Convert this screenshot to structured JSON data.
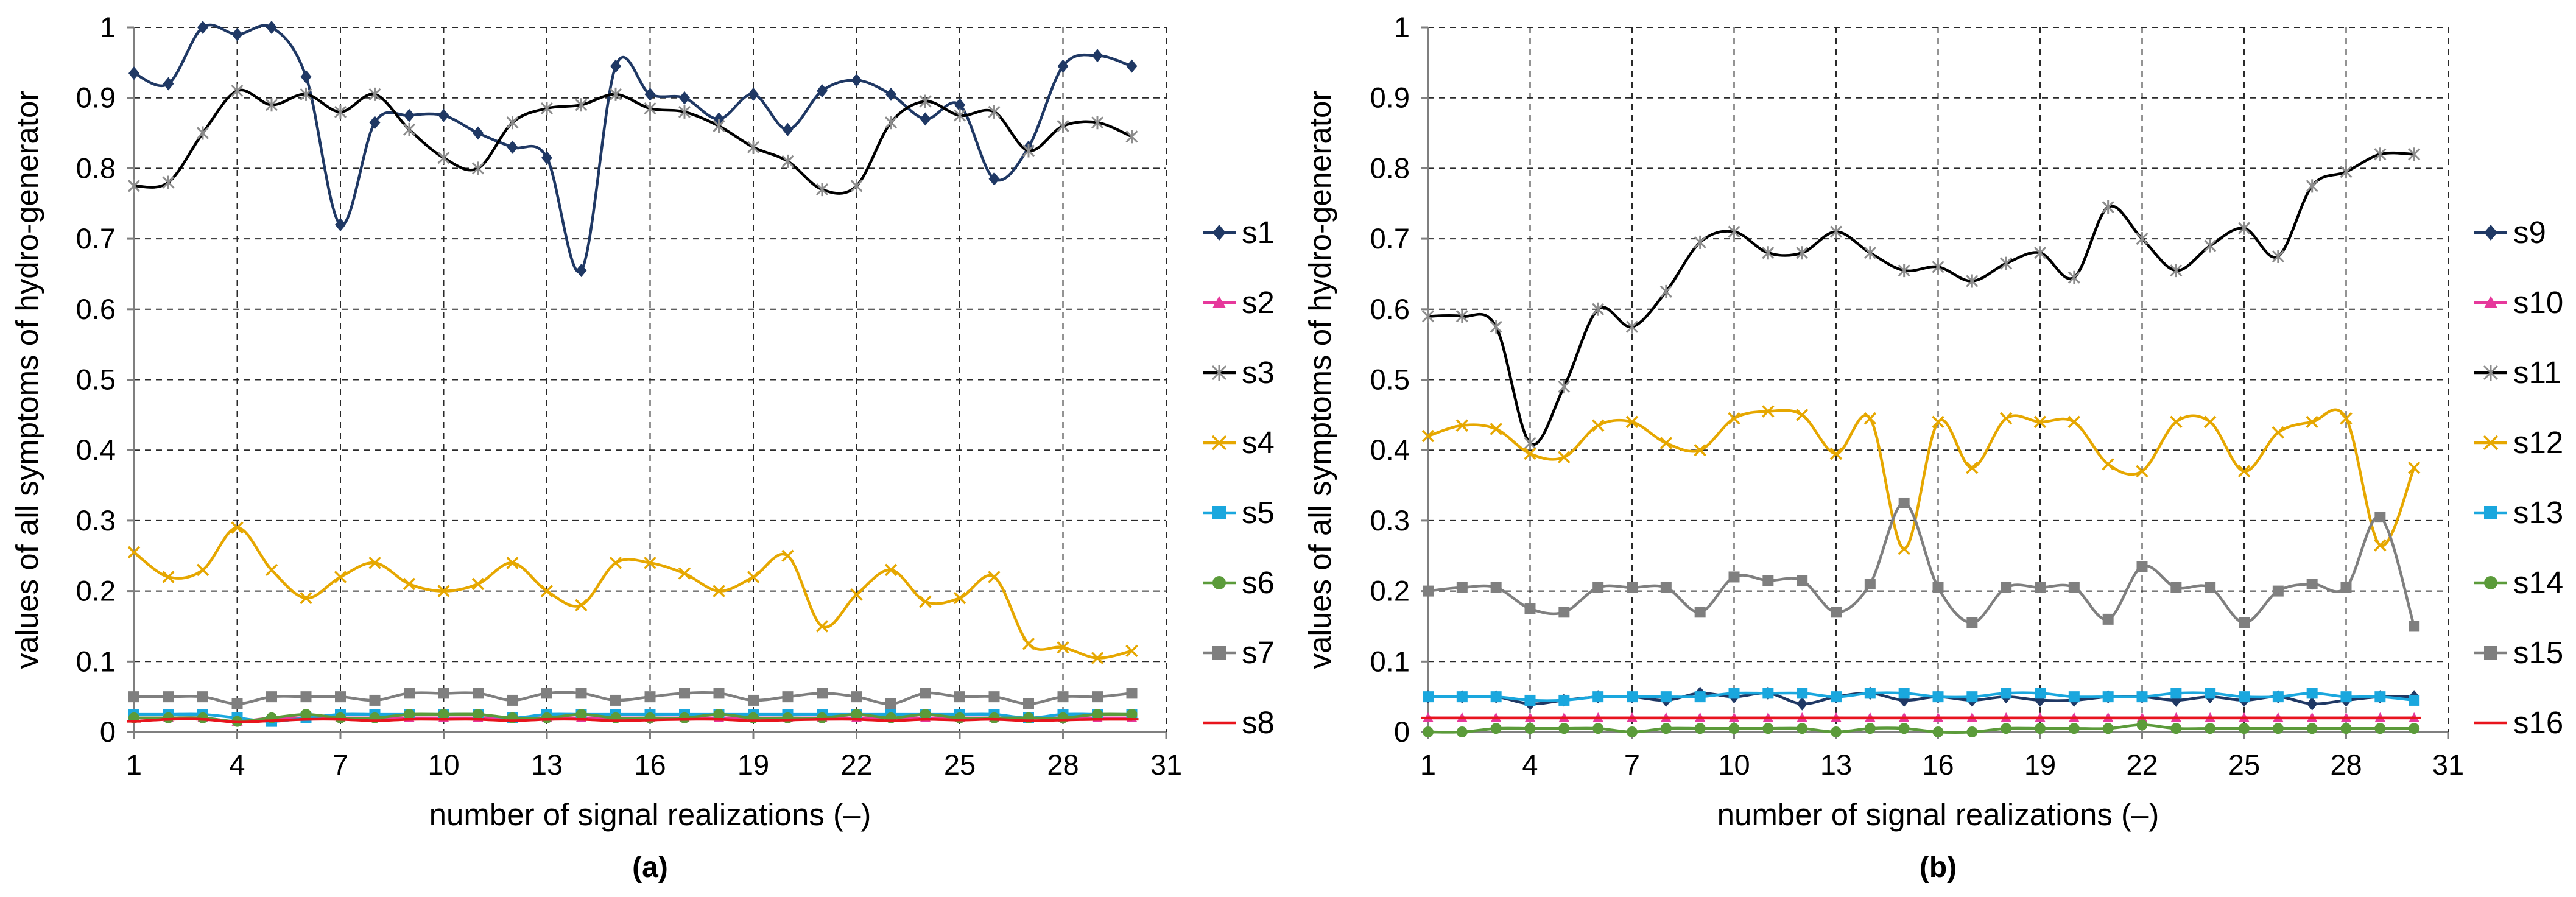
{
  "chart_data": [
    {
      "type": "line",
      "panel_label": "(a)",
      "xlabel": "number of signal realizations (–)",
      "ylabel": "values of all symptoms of hydro-generator",
      "xlim": [
        1,
        31
      ],
      "ylim": [
        0,
        1
      ],
      "x_ticks": [
        1,
        4,
        7,
        10,
        13,
        16,
        19,
        22,
        25,
        28,
        31
      ],
      "y_ticks": [
        0,
        0.1,
        0.2,
        0.3,
        0.4,
        0.5,
        0.6,
        0.7,
        0.8,
        0.9,
        1
      ],
      "y_tick_labels": [
        "0",
        "0.1",
        "0.2",
        "0.3",
        "0.4",
        "0.5",
        "0.6",
        "0.7",
        "0.8",
        "0.9",
        "1"
      ],
      "grid": true,
      "legend_position": "right",
      "x": [
        1,
        2,
        3,
        4,
        5,
        6,
        7,
        8,
        9,
        10,
        11,
        12,
        13,
        14,
        15,
        16,
        17,
        18,
        19,
        20,
        21,
        22,
        23,
        24,
        25,
        26,
        27,
        28,
        29,
        30
      ],
      "series": [
        {
          "name": "s1",
          "color": "#1f3864",
          "marker": "diamond",
          "values": [
            0.935,
            0.92,
            1.0,
            0.99,
            1.0,
            0.93,
            0.72,
            0.865,
            0.875,
            0.875,
            0.85,
            0.83,
            0.815,
            0.655,
            0.945,
            0.905,
            0.9,
            0.87,
            0.905,
            0.855,
            0.91,
            0.925,
            0.905,
            0.87,
            0.89,
            0.785,
            0.83,
            0.945,
            0.96,
            0.945
          ]
        },
        {
          "name": "s2",
          "color": "#e6389b",
          "marker": "triangle",
          "values": [
            0.02,
            0.02,
            0.02,
            0.015,
            0.02,
            0.02,
            0.02,
            0.02,
            0.02,
            0.02,
            0.02,
            0.02,
            0.02,
            0.02,
            0.02,
            0.02,
            0.02,
            0.02,
            0.02,
            0.02,
            0.02,
            0.02,
            0.02,
            0.02,
            0.02,
            0.02,
            0.02,
            0.02,
            0.02,
            0.02
          ]
        },
        {
          "name": "s3",
          "color": "#000000",
          "marker": "star",
          "values": [
            0.775,
            0.78,
            0.85,
            0.91,
            0.89,
            0.905,
            0.88,
            0.905,
            0.855,
            0.815,
            0.8,
            0.865,
            0.885,
            0.89,
            0.905,
            0.885,
            0.88,
            0.86,
            0.83,
            0.81,
            0.77,
            0.775,
            0.865,
            0.895,
            0.875,
            0.88,
            0.825,
            0.86,
            0.865,
            0.845
          ]
        },
        {
          "name": "s4",
          "color": "#e6a700",
          "marker": "x",
          "values": [
            0.255,
            0.22,
            0.23,
            0.29,
            0.23,
            0.19,
            0.22,
            0.24,
            0.21,
            0.2,
            0.21,
            0.24,
            0.2,
            0.18,
            0.24,
            0.24,
            0.225,
            0.2,
            0.22,
            0.25,
            0.15,
            0.195,
            0.23,
            0.185,
            0.19,
            0.22,
            0.125,
            0.12,
            0.105,
            0.115
          ]
        },
        {
          "name": "s5",
          "color": "#1aa7de",
          "marker": "square",
          "values": [
            0.025,
            0.025,
            0.025,
            0.02,
            0.015,
            0.02,
            0.025,
            0.025,
            0.025,
            0.025,
            0.025,
            0.02,
            0.025,
            0.025,
            0.025,
            0.025,
            0.025,
            0.025,
            0.025,
            0.025,
            0.025,
            0.025,
            0.025,
            0.025,
            0.025,
            0.025,
            0.02,
            0.025,
            0.025,
            0.025
          ]
        },
        {
          "name": "s6",
          "color": "#5b9b3a",
          "marker": "circle",
          "values": [
            0.02,
            0.02,
            0.02,
            0.015,
            0.02,
            0.025,
            0.02,
            0.02,
            0.025,
            0.025,
            0.025,
            0.02,
            0.02,
            0.025,
            0.02,
            0.02,
            0.02,
            0.025,
            0.02,
            0.02,
            0.02,
            0.025,
            0.02,
            0.025,
            0.02,
            0.02,
            0.02,
            0.02,
            0.025,
            0.025
          ]
        },
        {
          "name": "s7",
          "color": "#7f7f7f",
          "marker": "square",
          "values": [
            0.05,
            0.05,
            0.05,
            0.04,
            0.05,
            0.05,
            0.05,
            0.045,
            0.055,
            0.055,
            0.055,
            0.045,
            0.055,
            0.055,
            0.045,
            0.05,
            0.055,
            0.055,
            0.045,
            0.05,
            0.055,
            0.05,
            0.04,
            0.055,
            0.05,
            0.05,
            0.04,
            0.05,
            0.05,
            0.055
          ]
        },
        {
          "name": "s8",
          "color": "#e8141c",
          "marker": "dash",
          "values": [
            0.015,
            0.018,
            0.018,
            0.014,
            0.016,
            0.018,
            0.018,
            0.016,
            0.018,
            0.018,
            0.018,
            0.016,
            0.018,
            0.018,
            0.016,
            0.017,
            0.018,
            0.018,
            0.016,
            0.017,
            0.018,
            0.018,
            0.016,
            0.018,
            0.017,
            0.018,
            0.016,
            0.017,
            0.018,
            0.018
          ]
        }
      ]
    },
    {
      "type": "line",
      "panel_label": "(b)",
      "xlabel": "number of signal realizations (–)",
      "ylabel": "values of all symptoms of hydro-generator",
      "xlim": [
        1,
        31
      ],
      "ylim": [
        0,
        1
      ],
      "x_ticks": [
        1,
        4,
        7,
        10,
        13,
        16,
        19,
        22,
        25,
        28,
        31
      ],
      "y_ticks": [
        0,
        0.1,
        0.2,
        0.3,
        0.4,
        0.5,
        0.6,
        0.7,
        0.8,
        0.9,
        1
      ],
      "y_tick_labels": [
        "0",
        "0.1",
        "0.2",
        "0.3",
        "0.4",
        "0.5",
        "0.6",
        "0.7",
        "0.8",
        "0.9",
        "1"
      ],
      "grid": true,
      "legend_position": "right",
      "x": [
        1,
        2,
        3,
        4,
        5,
        6,
        7,
        8,
        9,
        10,
        11,
        12,
        13,
        14,
        15,
        16,
        17,
        18,
        19,
        20,
        21,
        22,
        23,
        24,
        25,
        26,
        27,
        28,
        29,
        30
      ],
      "series": [
        {
          "name": "s9",
          "color": "#1f3864",
          "marker": "diamond",
          "values": [
            0.05,
            0.05,
            0.05,
            0.04,
            0.045,
            0.05,
            0.05,
            0.045,
            0.055,
            0.05,
            0.055,
            0.04,
            0.05,
            0.055,
            0.045,
            0.05,
            0.045,
            0.05,
            0.045,
            0.045,
            0.05,
            0.05,
            0.045,
            0.05,
            0.045,
            0.05,
            0.04,
            0.045,
            0.05,
            0.05
          ]
        },
        {
          "name": "s10",
          "color": "#e6389b",
          "marker": "triangle",
          "values": [
            0.02,
            0.02,
            0.02,
            0.02,
            0.02,
            0.02,
            0.02,
            0.02,
            0.02,
            0.02,
            0.02,
            0.02,
            0.02,
            0.02,
            0.02,
            0.02,
            0.02,
            0.02,
            0.02,
            0.02,
            0.02,
            0.02,
            0.02,
            0.02,
            0.02,
            0.02,
            0.02,
            0.02,
            0.02,
            0.02
          ]
        },
        {
          "name": "s11",
          "color": "#000000",
          "marker": "star",
          "values": [
            0.59,
            0.59,
            0.575,
            0.41,
            0.49,
            0.6,
            0.575,
            0.625,
            0.695,
            0.71,
            0.68,
            0.68,
            0.71,
            0.68,
            0.655,
            0.66,
            0.64,
            0.665,
            0.68,
            0.645,
            0.745,
            0.7,
            0.655,
            0.69,
            0.715,
            0.675,
            0.775,
            0.795,
            0.82,
            0.82
          ]
        },
        {
          "name": "s12",
          "color": "#e6a700",
          "marker": "x",
          "values": [
            0.42,
            0.435,
            0.43,
            0.395,
            0.39,
            0.435,
            0.44,
            0.41,
            0.4,
            0.445,
            0.455,
            0.45,
            0.395,
            0.445,
            0.26,
            0.44,
            0.375,
            0.445,
            0.44,
            0.44,
            0.38,
            0.37,
            0.44,
            0.44,
            0.37,
            0.425,
            0.44,
            0.445,
            0.265,
            0.375
          ]
        },
        {
          "name": "s13",
          "color": "#1aa7de",
          "marker": "square",
          "values": [
            0.05,
            0.05,
            0.05,
            0.045,
            0.045,
            0.05,
            0.05,
            0.05,
            0.05,
            0.055,
            0.055,
            0.055,
            0.05,
            0.055,
            0.055,
            0.05,
            0.05,
            0.055,
            0.055,
            0.05,
            0.05,
            0.05,
            0.055,
            0.055,
            0.05,
            0.05,
            0.055,
            0.05,
            0.05,
            0.045
          ]
        },
        {
          "name": "s14",
          "color": "#5b9b3a",
          "marker": "circle",
          "values": [
            0.0,
            0.0,
            0.005,
            0.005,
            0.005,
            0.005,
            0.0,
            0.005,
            0.005,
            0.005,
            0.005,
            0.005,
            0.0,
            0.005,
            0.005,
            0.0,
            0.0,
            0.005,
            0.005,
            0.005,
            0.005,
            0.01,
            0.005,
            0.005,
            0.005,
            0.005,
            0.005,
            0.005,
            0.005,
            0.005
          ]
        },
        {
          "name": "s15",
          "color": "#7f7f7f",
          "marker": "square",
          "values": [
            0.2,
            0.205,
            0.205,
            0.175,
            0.17,
            0.205,
            0.205,
            0.205,
            0.17,
            0.22,
            0.215,
            0.215,
            0.17,
            0.21,
            0.325,
            0.205,
            0.155,
            0.205,
            0.205,
            0.205,
            0.16,
            0.235,
            0.205,
            0.205,
            0.155,
            0.2,
            0.21,
            0.205,
            0.305,
            0.15
          ]
        },
        {
          "name": "s16",
          "color": "#e8141c",
          "marker": "dash",
          "values": [
            0.02,
            0.02,
            0.02,
            0.02,
            0.02,
            0.02,
            0.02,
            0.02,
            0.02,
            0.02,
            0.02,
            0.02,
            0.02,
            0.02,
            0.02,
            0.02,
            0.02,
            0.02,
            0.02,
            0.02,
            0.02,
            0.02,
            0.02,
            0.02,
            0.02,
            0.02,
            0.02,
            0.02,
            0.02,
            0.02
          ]
        }
      ]
    }
  ]
}
